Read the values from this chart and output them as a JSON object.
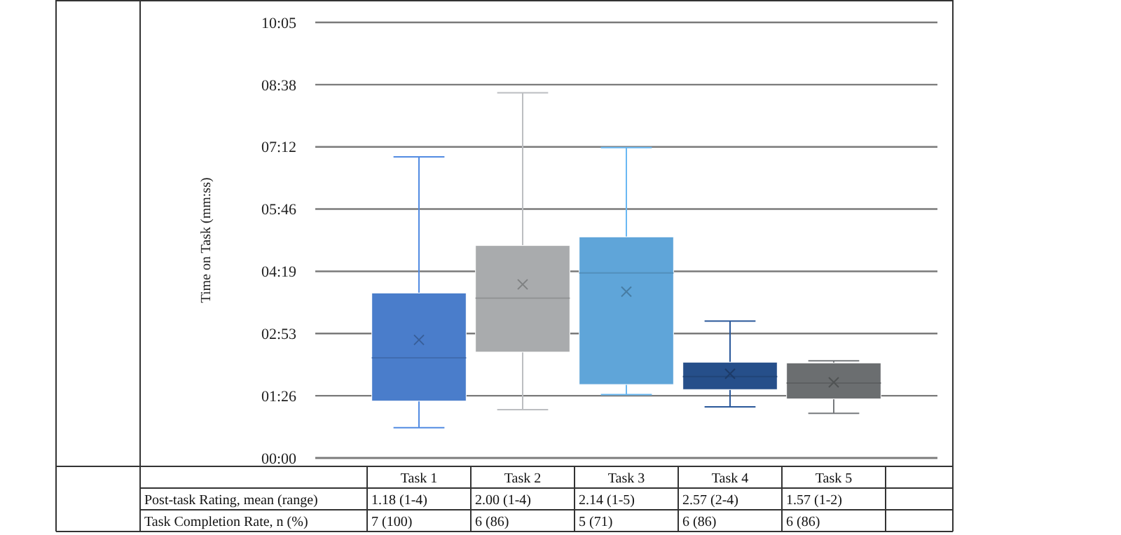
{
  "chart_data": {
    "type": "box",
    "ylabel": "Time on Task (mm:ss)",
    "categories": [
      "Task 1",
      "Task 2",
      "Task 3",
      "Task 4",
      "Task 5"
    ],
    "colors": [
      "#4a7dcb",
      "#a9abad",
      "#5fa5d9",
      "#264f8a",
      "#6b6e70"
    ],
    "boxes": [
      {
        "low": 42,
        "q1": 79,
        "median": 139,
        "q3": 229,
        "high": 418,
        "mean": 164
      },
      {
        "low": 67,
        "q1": 147,
        "median": 222,
        "q3": 295,
        "high": 507,
        "mean": 241
      },
      {
        "low": 88,
        "q1": 102,
        "median": 257,
        "q3": 307,
        "high": 431,
        "mean": 231
      },
      {
        "low": 71,
        "q1": 95,
        "median": 113,
        "q3": 133,
        "high": 190,
        "mean": 117
      },
      {
        "low": 62,
        "q1": 82,
        "median": 104,
        "q3": 132,
        "high": 135,
        "mean": 105
      }
    ],
    "ylim": [
      0,
      604.8
    ],
    "yticks": [
      {
        "value": 0,
        "label": "00:00"
      },
      {
        "value": 86.4,
        "label": "01:26"
      },
      {
        "value": 172.8,
        "label": "02:53"
      },
      {
        "value": 259.2,
        "label": "04:19"
      },
      {
        "value": 345.6,
        "label": "05:46"
      },
      {
        "value": 432,
        "label": "07:12"
      },
      {
        "value": 518.4,
        "label": "08:38"
      },
      {
        "value": 604.8,
        "label": "10:05"
      }
    ],
    "grid": "y",
    "marker": "cross",
    "annotations": [
      "Post-task Rating, mean (range)",
      "1.18 (1-4)",
      "2.00 (1-4)",
      "2.14 (1-5)",
      "2.57 (2-4)",
      "1.57 (1-2)",
      "Task Completion Rate, n (%)",
      "7 (100)",
      "6 (86)",
      "5 (71)",
      "6 (86)",
      "6 (86)"
    ]
  }
}
